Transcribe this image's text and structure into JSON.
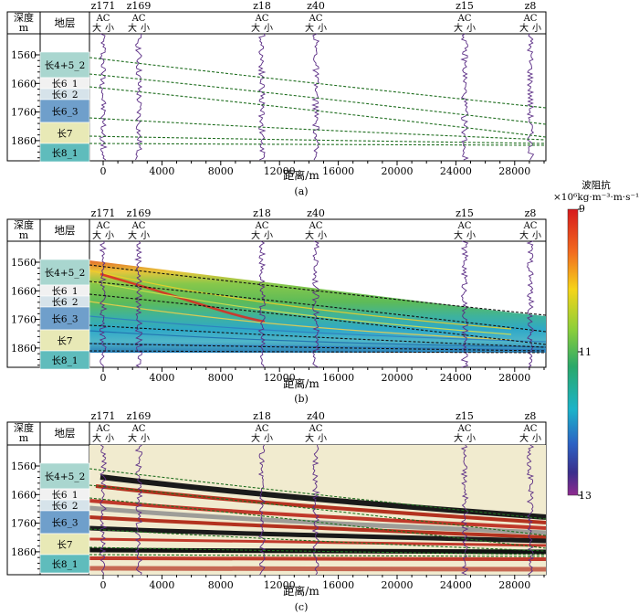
{
  "figure": {
    "depth_header": [
      "深度",
      "m"
    ],
    "layer_header": "地层",
    "ac_label": "AC",
    "big_label": "大",
    "small_label": "小",
    "x_axis_label": "距离/m",
    "panel_captions": [
      "(a)",
      "(b)",
      "(c)"
    ],
    "depth_ticks": [
      "1560",
      "1660",
      "1760",
      "1860"
    ],
    "distance_ticks": [
      "0",
      "4000",
      "8000",
      "12000",
      "16000",
      "20000",
      "24000",
      "28000"
    ],
    "layers": [
      {
        "name": "长4+5_2",
        "color": "#a9d6cf"
      },
      {
        "name": "长6_1",
        "color": "#f1f1f1"
      },
      {
        "name": "长6_2",
        "color": "#d6e3ea"
      },
      {
        "name": "长6_3",
        "color": "#6f9fcb"
      },
      {
        "name": "长7",
        "color": "#e8e9b6"
      },
      {
        "name": "长8_1",
        "color": "#5fbcbc"
      }
    ],
    "wells": [
      "z171",
      "z169",
      "z18",
      "z40",
      "z15",
      "z8"
    ]
  },
  "colorbar": {
    "title_line1": "波阻抗",
    "title_line2": "×10⁶kg·m⁻³·m·s⁻¹",
    "tick_top": "9",
    "tick_mid": "11",
    "tick_bottom": "13"
  },
  "colors": {
    "horizon": "#1f6e1f",
    "log_curve": "#5b2d85",
    "seismic_background": "#f1ebcf"
  }
}
